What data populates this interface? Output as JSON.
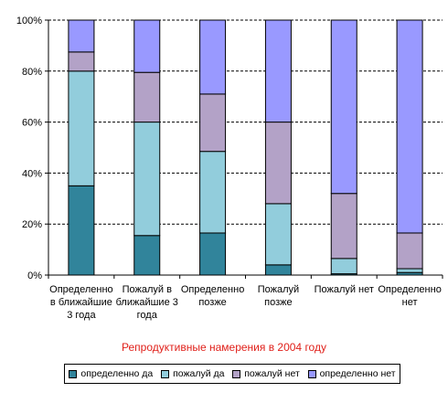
{
  "chart_data": {
    "type": "bar",
    "stacked": true,
    "percent": true,
    "title": "Репродуктивные намерения в 2004 году",
    "categories": [
      [
        "Определенно",
        "в ближайшие",
        "3 года"
      ],
      [
        "Пожалуй в",
        "ближайшие 3",
        "года"
      ],
      [
        "Определенно",
        "позже"
      ],
      [
        "Пожалуй",
        "позже"
      ],
      [
        "Пожалуй нет"
      ],
      [
        "Определенно",
        "нет"
      ]
    ],
    "series": [
      {
        "name": "определенно да",
        "color": "#31849b",
        "values": [
          35,
          15.5,
          16.5,
          4,
          0.5,
          1
        ]
      },
      {
        "name": "пожалуй да",
        "color": "#92cddc",
        "values": [
          45,
          44.5,
          32,
          24,
          6,
          1.5
        ]
      },
      {
        "name": "пожалуй нет",
        "color": "#b3a2c7",
        "values": [
          7.5,
          19.5,
          22.5,
          32,
          25.5,
          14
        ]
      },
      {
        "name": "определенно нет",
        "color": "#9999ff",
        "values": [
          12.5,
          20.5,
          29,
          40,
          68,
          83.5
        ]
      }
    ],
    "y_ticks": [
      "0%",
      "20%",
      "40%",
      "60%",
      "80%",
      "100%"
    ],
    "ylim": [
      0,
      100
    ],
    "grid": "dashed horizontal",
    "legend_position": "bottom"
  }
}
